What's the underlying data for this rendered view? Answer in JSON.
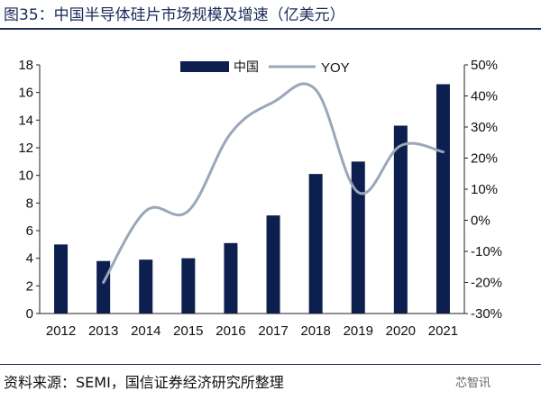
{
  "header": {
    "title": "图35：中国半导体硅片市场规模及增速（亿美元）"
  },
  "footer": {
    "source": "资料来源：SEMI，国信证券经济研究所整理",
    "watermark": "芯智讯"
  },
  "colors": {
    "bar": "#0d1f4f",
    "line": "#9aa7b8",
    "axis": "#222222",
    "text": "#111111"
  },
  "chart_data": {
    "type": "bar",
    "categories": [
      "2012",
      "2013",
      "2014",
      "2015",
      "2016",
      "2017",
      "2018",
      "2019",
      "2020",
      "2021"
    ],
    "series": [
      {
        "name": "中国",
        "type": "bar",
        "axis": "left",
        "values": [
          5.0,
          3.8,
          3.9,
          4.0,
          5.1,
          7.1,
          10.1,
          11.0,
          13.6,
          16.6
        ]
      },
      {
        "name": "YOY",
        "type": "line",
        "axis": "right",
        "values": [
          null,
          -0.2,
          0.03,
          0.03,
          0.28,
          0.38,
          0.42,
          0.09,
          0.24,
          0.22
        ]
      }
    ],
    "ylim_left": [
      0,
      18
    ],
    "left_ticks": [
      "0",
      "2",
      "4",
      "6",
      "8",
      "10",
      "12",
      "14",
      "16",
      "18"
    ],
    "ylim_right": [
      -0.3,
      0.5
    ],
    "right_ticks": [
      "-30%",
      "-20%",
      "-10%",
      "0%",
      "10%",
      "20%",
      "30%",
      "40%",
      "50%"
    ],
    "legend": {
      "position": "top"
    },
    "grid": false
  }
}
